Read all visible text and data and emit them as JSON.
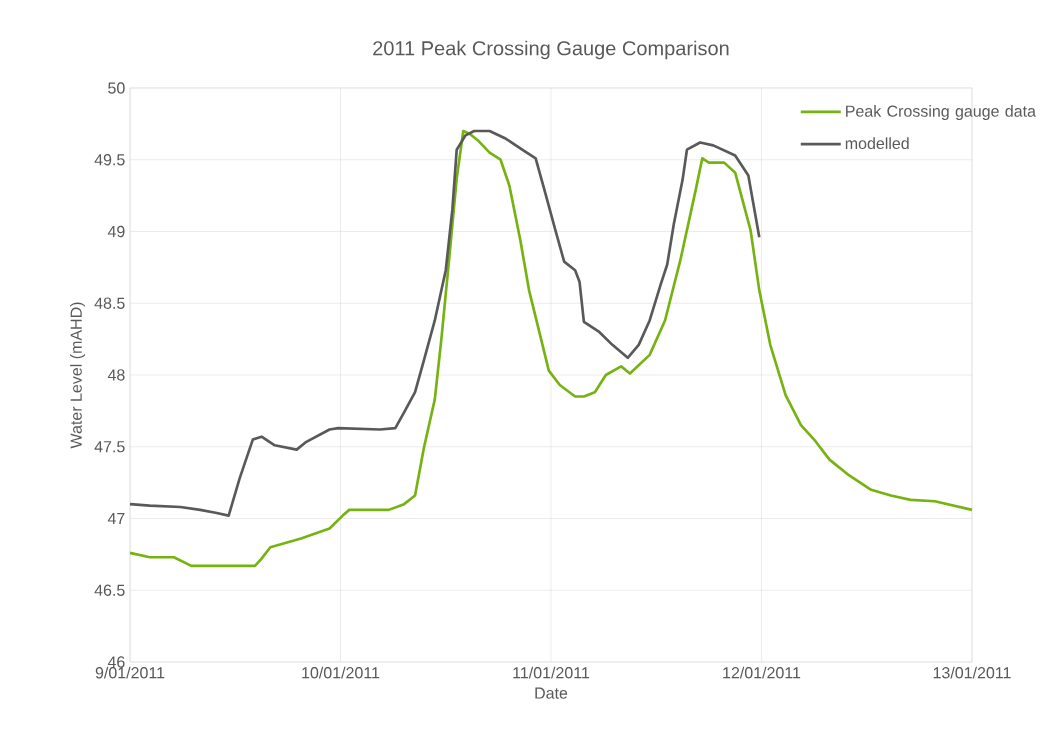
{
  "chart_data": {
    "type": "line",
    "title": "2011 Peak Crossing Gauge Comparison",
    "xlabel": "Date",
    "ylabel": "Water Level (mAHD)",
    "xlim": [
      "2011-01-09",
      "2011-01-13"
    ],
    "xticks": [
      {
        "value": "2011-01-09",
        "label": "9/01/2011"
      },
      {
        "value": "2011-01-10",
        "label": "10/01/2011"
      },
      {
        "value": "2011-01-11",
        "label": "11/01/2011"
      },
      {
        "value": "2011-01-12",
        "label": "12/01/2011"
      },
      {
        "value": "2011-01-13",
        "label": "13/01/2011"
      }
    ],
    "ylim": [
      46,
      50
    ],
    "yticks": [
      46,
      46.5,
      47,
      47.5,
      48,
      48.5,
      49,
      49.5,
      50
    ],
    "grid": true,
    "legend": "top right",
    "marker": "none",
    "line_style": "solid",
    "series": [
      {
        "name": "Peak Crossing gauge data",
        "color": "#76b312",
        "x": [
          "2011-01-09T00:00",
          "2011-01-09T02:15",
          "2011-01-09T05:00",
          "2011-01-09T07:00",
          "2011-01-09T14:15",
          "2011-01-09T15:00",
          "2011-01-09T16:00",
          "2011-01-09T19:30",
          "2011-01-09T22:45",
          "2011-01-10T00:15",
          "2011-01-10T01:00",
          "2011-01-10T05:30",
          "2011-01-10T07:15",
          "2011-01-10T08:30",
          "2011-01-10T09:30",
          "2011-01-10T10:45",
          "2011-01-10T11:30",
          "2011-01-10T12:30",
          "2011-01-10T13:15",
          "2011-01-10T14:00",
          "2011-01-10T14:45",
          "2011-01-10T15:45",
          "2011-01-10T17:00",
          "2011-01-10T18:15",
          "2011-01-10T19:15",
          "2011-01-10T20:30",
          "2011-01-10T21:30",
          "2011-01-10T22:45",
          "2011-01-10T23:45",
          "2011-01-11T01:00",
          "2011-01-11T02:45",
          "2011-01-11T03:45",
          "2011-01-11T05:00",
          "2011-01-11T06:15",
          "2011-01-11T08:00",
          "2011-01-11T09:00",
          "2011-01-11T11:15",
          "2011-01-11T13:00",
          "2011-01-11T14:45",
          "2011-01-11T16:30",
          "2011-01-11T17:15",
          "2011-01-11T18:00",
          "2011-01-11T19:45",
          "2011-01-11T21:00",
          "2011-01-11T22:45",
          "2011-01-11T23:45",
          "2011-01-12T01:00",
          "2011-01-12T02:45",
          "2011-01-12T04:30",
          "2011-01-12T06:00",
          "2011-01-12T07:45",
          "2011-01-12T10:00",
          "2011-01-12T12:30",
          "2011-01-12T14:45",
          "2011-01-12T17:00",
          "2011-01-12T19:45",
          "2011-01-13T00:00"
        ],
        "values": [
          46.76,
          46.73,
          46.73,
          46.67,
          46.67,
          46.72,
          46.8,
          46.86,
          46.93,
          47.02,
          47.06,
          47.06,
          47.1,
          47.16,
          47.49,
          47.83,
          48.25,
          48.88,
          49.37,
          49.7,
          49.68,
          49.63,
          49.55,
          49.5,
          49.32,
          48.94,
          48.59,
          48.28,
          48.03,
          47.93,
          47.85,
          47.85,
          47.88,
          48.0,
          48.06,
          48.01,
          48.14,
          48.38,
          48.8,
          49.29,
          49.51,
          49.48,
          49.48,
          49.41,
          49.01,
          48.59,
          48.21,
          47.86,
          47.65,
          47.55,
          47.41,
          47.3,
          47.2,
          47.16,
          47.13,
          47.12,
          47.06
        ]
      },
      {
        "name": "modelled",
        "color": "#595959",
        "x": [
          "2011-01-09T00:00",
          "2011-01-09T02:15",
          "2011-01-09T05:45",
          "2011-01-09T08:00",
          "2011-01-09T09:45",
          "2011-01-09T11:15",
          "2011-01-09T12:30",
          "2011-01-09T14:00",
          "2011-01-09T15:00",
          "2011-01-09T16:30",
          "2011-01-09T19:00",
          "2011-01-09T20:00",
          "2011-01-09T22:45",
          "2011-01-09T23:45",
          "2011-01-10T04:30",
          "2011-01-10T06:15",
          "2011-01-10T07:15",
          "2011-01-10T08:30",
          "2011-01-10T09:30",
          "2011-01-10T10:45",
          "2011-01-10T12:00",
          "2011-01-10T12:45",
          "2011-01-10T13:15",
          "2011-01-10T14:15",
          "2011-01-10T15:15",
          "2011-01-10T17:00",
          "2011-01-10T18:45",
          "2011-01-10T20:30",
          "2011-01-10T22:15",
          "2011-01-10T23:15",
          "2011-01-11T00:30",
          "2011-01-11T01:30",
          "2011-01-11T02:45",
          "2011-01-11T03:15",
          "2011-01-11T03:45",
          "2011-01-11T05:30",
          "2011-01-11T07:00",
          "2011-01-11T08:45",
          "2011-01-11T10:00",
          "2011-01-11T11:15",
          "2011-01-11T12:30",
          "2011-01-11T13:15",
          "2011-01-11T14:00",
          "2011-01-11T15:00",
          "2011-01-11T15:30",
          "2011-01-11T17:00",
          "2011-01-11T18:30",
          "2011-01-11T21:00",
          "2011-01-11T22:30",
          "2011-01-11T23:45"
        ],
        "values": [
          47.1,
          47.09,
          47.08,
          47.06,
          47.04,
          47.02,
          47.28,
          47.55,
          47.57,
          47.51,
          47.48,
          47.53,
          47.62,
          47.63,
          47.62,
          47.63,
          47.74,
          47.88,
          48.1,
          48.38,
          48.73,
          49.15,
          49.57,
          49.67,
          49.7,
          49.7,
          49.65,
          49.58,
          49.51,
          49.29,
          49.01,
          48.79,
          48.73,
          48.65,
          48.37,
          48.3,
          48.21,
          48.12,
          48.21,
          48.38,
          48.63,
          48.77,
          49.05,
          49.36,
          49.57,
          49.62,
          49.6,
          49.53,
          49.39,
          48.96
        ]
      }
    ]
  }
}
